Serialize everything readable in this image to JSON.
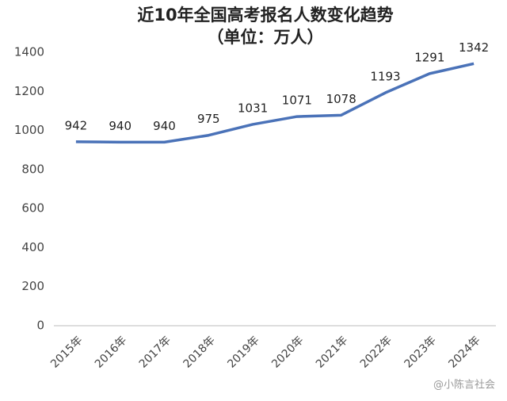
{
  "chart_data": {
    "type": "line",
    "title": "近10年全国高考报名人数变化趋势",
    "subtitle": "（单位：万人）",
    "categories": [
      "2015年",
      "2016年",
      "2017年",
      "2018年",
      "2019年",
      "2020年",
      "2021年",
      "2022年",
      "2023年",
      "2024年"
    ],
    "values": [
      942,
      940,
      940,
      975,
      1031,
      1071,
      1078,
      1193,
      1291,
      1342
    ],
    "color": "#4a72b8",
    "ylim": [
      0,
      1400
    ],
    "yticks": [
      0,
      200,
      400,
      600,
      800,
      1000,
      1200,
      1400
    ],
    "grid": false,
    "watermark": "@小陈言社会"
  }
}
